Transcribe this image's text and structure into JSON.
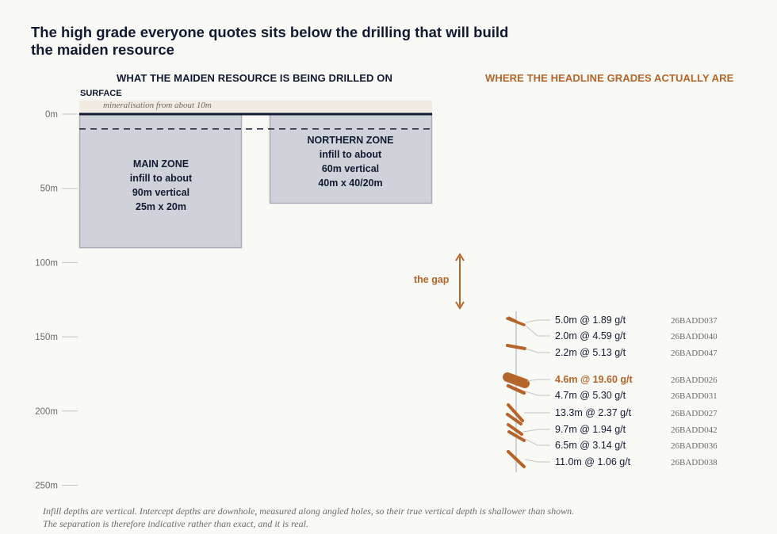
{
  "title_line1": "The high grade everyone quotes sits below the drilling that will build",
  "title_line2": "the maiden resource",
  "left_header": "WHAT THE MAIDEN RESOURCE IS BEING DRILLED ON",
  "right_header": "WHERE THE HEADLINE GRADES ACTUALLY ARE",
  "surface_label": "SURFACE",
  "mineralisation_note": "mineralisation from about 10m",
  "colors": {
    "navy": "#111a33",
    "accent": "#b5652a",
    "zone_fill": "#cfd2d8",
    "zone_stroke": "#a9adb8",
    "band": "#f2ebe2"
  },
  "axis": {
    "ticks": [
      {
        "depth": 0,
        "label": "0m"
      },
      {
        "depth": 50,
        "label": "50m"
      },
      {
        "depth": 100,
        "label": "100m"
      },
      {
        "depth": 150,
        "label": "150m"
      },
      {
        "depth": 200,
        "label": "200m"
      },
      {
        "depth": 250,
        "label": "250m"
      }
    ]
  },
  "main_zone": {
    "lines": [
      "MAIN ZONE",
      "infill to about",
      "90m vertical",
      "25m x 20m"
    ],
    "depth_m": 90
  },
  "northern_zone": {
    "lines": [
      "NORTHERN ZONE",
      "infill to about",
      "60m vertical",
      "40m x 40/20m"
    ],
    "depth_m": 60
  },
  "mineralisation_from_m": 10,
  "gap_label": "the gap",
  "intercepts": [
    {
      "text": "5.0m @ 1.89 g/t",
      "hole": "26BADD037",
      "highlight": false
    },
    {
      "text": "2.0m @ 4.59 g/t",
      "hole": "26BADD040",
      "highlight": false
    },
    {
      "text": "2.2m @ 5.13 g/t",
      "hole": "26BADD047",
      "highlight": false
    },
    {
      "text": "4.6m @ 19.60 g/t",
      "hole": "26BADD026",
      "highlight": true
    },
    {
      "text": "4.7m @ 5.30 g/t",
      "hole": "26BADD031",
      "highlight": false
    },
    {
      "text": "13.3m @ 2.37 g/t",
      "hole": "26BADD027",
      "highlight": false
    },
    {
      "text": "9.7m @ 1.94 g/t",
      "hole": "26BADD042",
      "highlight": false
    },
    {
      "text": "6.5m @ 3.14 g/t",
      "hole": "26BADD036",
      "highlight": false
    },
    {
      "text": "11.0m @ 1.06 g/t",
      "hole": "26BADD038",
      "highlight": false
    }
  ],
  "footnote_line1": "Infill depths are vertical. Intercept depths are downhole, measured along angled holes, so their true vertical depth is shallower than shown.",
  "footnote_line2": "The separation is therefore indicative rather than exact, and it is real."
}
